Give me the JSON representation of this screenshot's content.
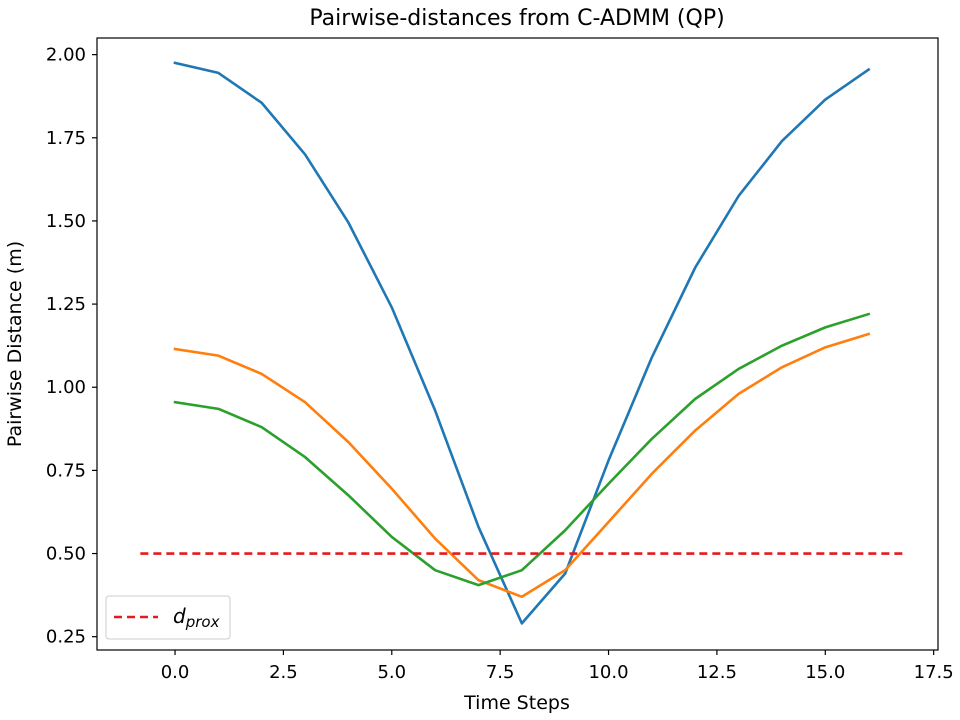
{
  "chart_data": {
    "type": "line",
    "title": "Pairwise-distances from C-ADMM (QP)",
    "xlabel": "Time Steps",
    "ylabel": "Pairwise Distance (m)",
    "xlim": [
      -1.8,
      17.6
    ],
    "ylim": [
      0.21,
      2.05
    ],
    "x_ticks": [
      0.0,
      2.5,
      5.0,
      7.5,
      10.0,
      12.5,
      15.0,
      17.5
    ],
    "x_tick_labels": [
      "0.0",
      "2.5",
      "5.0",
      "7.5",
      "10.0",
      "12.5",
      "15.0",
      "17.5"
    ],
    "y_ticks": [
      0.25,
      0.5,
      0.75,
      1.0,
      1.25,
      1.5,
      1.75,
      2.0
    ],
    "y_tick_labels": [
      "0.25",
      "0.50",
      "0.75",
      "1.00",
      "1.25",
      "1.50",
      "1.75",
      "2.00"
    ],
    "grid": false,
    "legend_placement": "lower-left",
    "x": [
      0,
      1,
      2,
      3,
      4,
      5,
      6,
      7,
      8,
      9,
      10,
      11,
      12,
      13,
      14,
      15,
      16
    ],
    "series": [
      {
        "color": "#1f77b4",
        "values": [
          1.975,
          1.945,
          1.855,
          1.7,
          1.495,
          1.24,
          0.93,
          0.58,
          0.29,
          0.44,
          0.78,
          1.09,
          1.36,
          1.575,
          1.74,
          1.865,
          1.955
        ]
      },
      {
        "color": "#ff7f0e",
        "values": [
          1.115,
          1.095,
          1.04,
          0.955,
          0.835,
          0.695,
          0.545,
          0.42,
          0.37,
          0.45,
          0.595,
          0.74,
          0.87,
          0.98,
          1.06,
          1.12,
          1.16
        ]
      },
      {
        "color": "#2ca02c",
        "values": [
          0.955,
          0.935,
          0.88,
          0.79,
          0.675,
          0.55,
          0.45,
          0.405,
          0.45,
          0.57,
          0.71,
          0.845,
          0.965,
          1.055,
          1.125,
          1.18,
          1.22
        ]
      }
    ],
    "threshold": {
      "legend_main": "d",
      "legend_sub": "prox",
      "value": 0.5,
      "x_range": [
        -0.8,
        16.8
      ],
      "color": "#e41a1c",
      "style": "dashed"
    }
  }
}
